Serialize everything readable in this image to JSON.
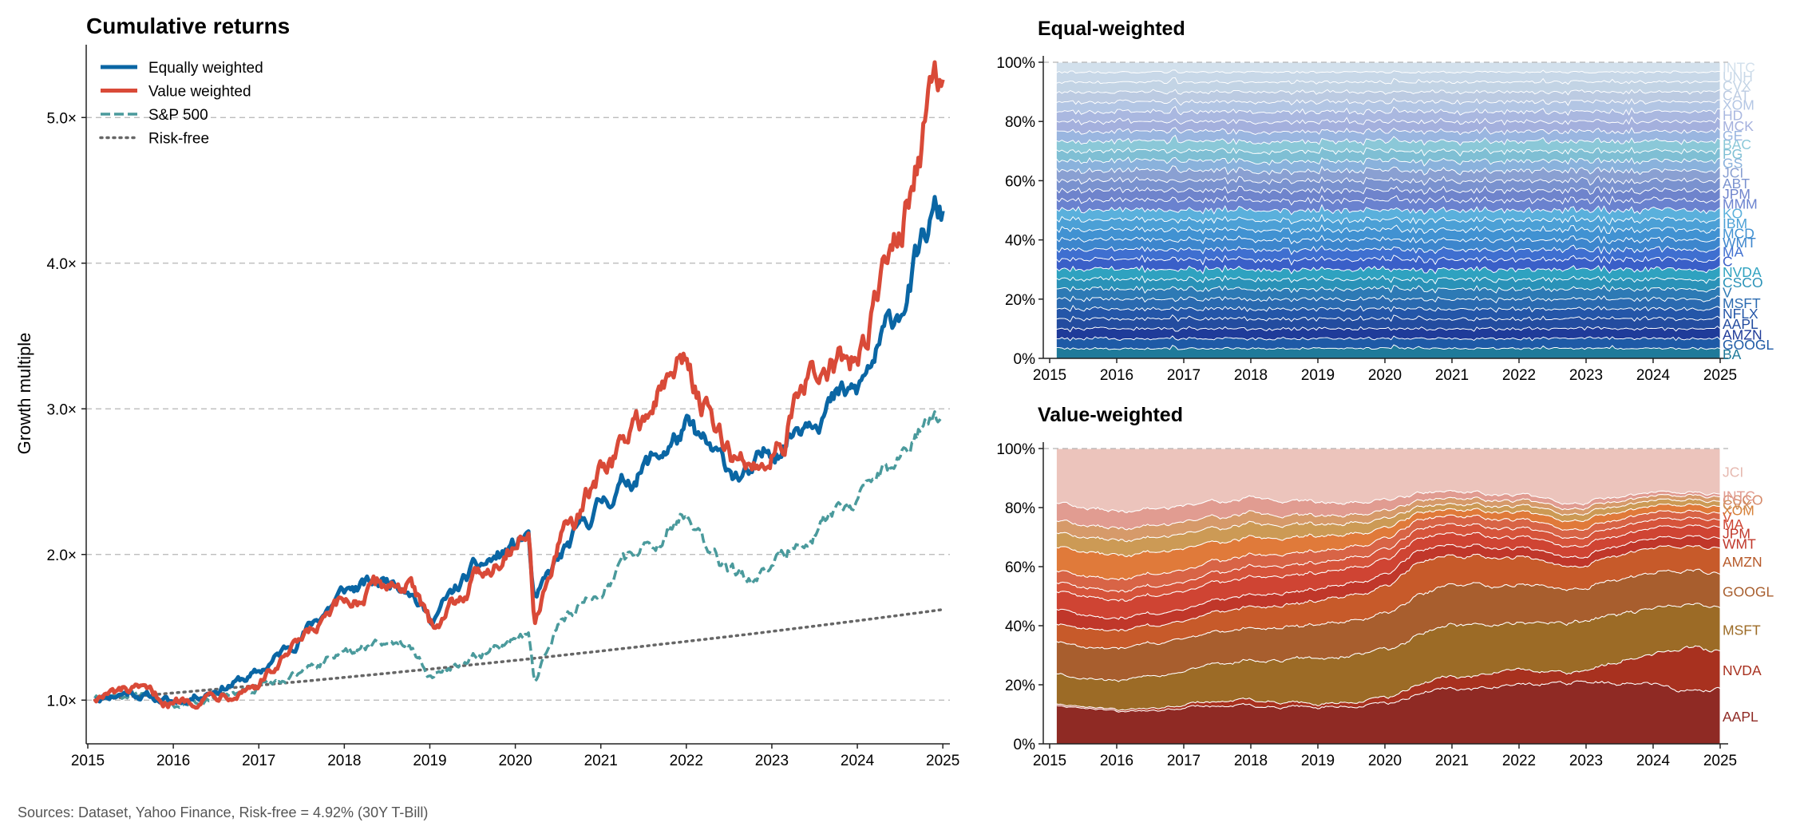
{
  "sources": "Sources: Dataset, Yahoo Finance, Risk-free = 4.92% (30Y T-Bill)",
  "chart_data": [
    {
      "type": "line",
      "title": "Cumulative returns",
      "xlabel": "",
      "ylabel": "Growth multiple",
      "xlim": [
        2015,
        2025
      ],
      "ylim": [
        0.7,
        5.5
      ],
      "xticks": [
        "2015",
        "2016",
        "2017",
        "2018",
        "2019",
        "2020",
        "2021",
        "2022",
        "2023",
        "2024",
        "2025"
      ],
      "yticks": [
        "1.0×",
        "2.0×",
        "3.0×",
        "4.0×",
        "5.0×"
      ],
      "ytick_values": [
        1,
        2,
        3,
        4,
        5
      ],
      "grid": "horizontal dashed",
      "legend_position": "top-left",
      "x": [
        2015.08,
        2015.5,
        2016.0,
        2016.5,
        2017.0,
        2017.5,
        2018.0,
        2018.5,
        2018.75,
        2019.0,
        2019.5,
        2020.0,
        2020.15,
        2020.22,
        2020.5,
        2021.0,
        2021.5,
        2022.0,
        2022.4,
        2022.75,
        2023.0,
        2023.5,
        2024.0,
        2024.5,
        2024.9,
        2025.0
      ],
      "series": [
        {
          "name": "Equally weighted",
          "color": "#0a66a4",
          "style": "solid",
          "values": [
            1.02,
            1.06,
            0.98,
            1.08,
            1.18,
            1.45,
            1.75,
            1.82,
            1.82,
            1.55,
            1.88,
            2.05,
            2.15,
            1.65,
            1.95,
            2.35,
            2.6,
            2.85,
            2.62,
            2.52,
            2.72,
            3.02,
            3.1,
            3.7,
            4.32,
            4.3
          ]
        },
        {
          "name": "Value weighted",
          "color": "#d94a38",
          "style": "solid",
          "values": [
            1.02,
            1.06,
            0.98,
            1.05,
            1.12,
            1.38,
            1.65,
            1.8,
            1.8,
            1.5,
            1.83,
            2.1,
            2.2,
            1.58,
            2.02,
            2.55,
            2.95,
            3.35,
            2.75,
            2.58,
            2.72,
            3.22,
            3.3,
            4.25,
            5.2,
            5.2
          ]
        },
        {
          "name": "S&P 500",
          "color": "#4a9a9c",
          "style": "dashed",
          "values": [
            1.02,
            1.04,
            0.95,
            1.02,
            1.08,
            1.2,
            1.35,
            1.38,
            1.42,
            1.18,
            1.3,
            1.42,
            1.48,
            1.12,
            1.52,
            1.78,
            2.05,
            2.3,
            1.92,
            1.82,
            1.95,
            2.2,
            2.35,
            2.65,
            3.0,
            2.95
          ]
        },
        {
          "name": "Risk-free",
          "color": "#666666",
          "style": "dotted",
          "values": [
            1.0,
            1.024,
            1.049,
            1.075,
            1.102,
            1.128,
            1.156,
            1.184,
            1.199,
            1.213,
            1.243,
            1.273,
            1.282,
            1.287,
            1.305,
            1.337,
            1.37,
            1.403,
            1.43,
            1.454,
            1.472,
            1.508,
            1.545,
            1.583,
            1.614,
            1.622
          ]
        }
      ]
    },
    {
      "type": "area",
      "stacked": "percent",
      "title": "Equal-weighted",
      "xlim": [
        2015,
        2025
      ],
      "ylim": [
        0,
        100
      ],
      "xticks": [
        "2015",
        "2016",
        "2017",
        "2018",
        "2019",
        "2020",
        "2021",
        "2022",
        "2023",
        "2024",
        "2025"
      ],
      "yticks": [
        "0%",
        "20%",
        "40%",
        "60%",
        "80%",
        "100%"
      ],
      "series_labels_bottom_to_top": [
        "BA",
        "GOOGL",
        "AMZN",
        "AAPL",
        "NFLX",
        "MSFT",
        "V",
        "CSCO",
        "NVDA",
        "C",
        "MA",
        "WMT",
        "MCD",
        "IBM",
        "KO",
        "MMM",
        "JPM",
        "ABT",
        "JCI",
        "GS",
        "PG",
        "BAC",
        "GE",
        "MCK",
        "HD",
        "XOM",
        "CAT",
        "CVX",
        "UNH",
        "INTC"
      ],
      "series_colors": [
        "#1f7a9a",
        "#1e5aa6",
        "#1f3b99",
        "#234c9f",
        "#2456a8",
        "#2a6ab0",
        "#2d7ab5",
        "#2a92b8",
        "#2fa2c0",
        "#3a5fc8",
        "#3f6fd0",
        "#3d86cd",
        "#4192d2",
        "#4ca0d6",
        "#5ab0dc",
        "#6a82cf",
        "#6f84cc",
        "#7a92cf",
        "#8aa0d2",
        "#8ab2dc",
        "#7fbfd4",
        "#8bc8d8",
        "#9ab6e0",
        "#a4b0dd",
        "#aab8e0",
        "#b3c6e4",
        "#bccbe2",
        "#c3d4e5",
        "#c8d8e8",
        "#d2e0ec"
      ],
      "values": "equal 1/30 share (~3.33%) per ticker across 2015–2025"
    },
    {
      "type": "area",
      "stacked": "percent",
      "title": "Value-weighted",
      "xlim": [
        2015,
        2025
      ],
      "ylim": [
        0,
        100
      ],
      "xticks": [
        "2015",
        "2016",
        "2017",
        "2018",
        "2019",
        "2020",
        "2021",
        "2022",
        "2023",
        "2024",
        "2025"
      ],
      "yticks": [
        "0%",
        "20%",
        "40%",
        "60%",
        "80%",
        "100%"
      ],
      "x": [
        2015.1,
        2016,
        2017,
        2018,
        2019,
        2020.1,
        2020.4,
        2021,
        2022,
        2022.9,
        2023.5,
        2024,
        2024.5,
        2025
      ],
      "series": [
        {
          "name": "AAPL",
          "color": "#8f2a24",
          "values": [
            13,
            11,
            12,
            13,
            12,
            14,
            16,
            18,
            20,
            19,
            20,
            20,
            17,
            17
          ]
        },
        {
          "name": "NVDA",
          "color": "#a8311f",
          "values": [
            0.5,
            0.5,
            1,
            2,
            1,
            2,
            3,
            4,
            5,
            3,
            7,
            10,
            14,
            13
          ]
        },
        {
          "name": "MSFT",
          "color": "#9c6b26",
          "values": [
            10,
            10,
            11,
            13,
            15,
            17,
            17,
            17,
            16,
            16,
            16,
            15,
            14,
            14
          ]
        },
        {
          "name": "GOOGL",
          "color": "#a85e2e",
          "values": [
            11,
            11,
            11,
            11,
            11,
            12,
            12,
            13,
            13,
            11,
            11,
            11,
            11,
            11
          ]
        },
        {
          "name": "AMZN",
          "color": "#c75a2a",
          "values": [
            6,
            6,
            6,
            7,
            8,
            9,
            11,
            10,
            9,
            7,
            8,
            8,
            8,
            8
          ]
        },
        {
          "name": "WMT",
          "color": "#c0372a",
          "values": [
            5,
            4,
            4,
            4,
            4,
            4,
            4,
            3.5,
            3,
            3,
            3,
            3,
            3,
            3
          ]
        },
        {
          "name": "JPM",
          "color": "#cf4433",
          "values": [
            6,
            6,
            6,
            6,
            5.5,
            5,
            4,
            4,
            3.5,
            3.5,
            3.5,
            3.5,
            3.5,
            3.5
          ]
        },
        {
          "name": "MA",
          "color": "#d6543b",
          "values": [
            3,
            3,
            3,
            3.5,
            3.5,
            3.5,
            3,
            3,
            3,
            2.8,
            2.8,
            2.6,
            2.4,
            2.3
          ]
        },
        {
          "name": "V",
          "color": "#d86446",
          "values": [
            4,
            4,
            4,
            4,
            4,
            3.5,
            3,
            3,
            2.8,
            2.7,
            2.6,
            2.4,
            2.2,
            2.2
          ]
        },
        {
          "name": "XOM",
          "color": "#e07a3a",
          "values": [
            8,
            8,
            7,
            6,
            5,
            3.5,
            2.5,
            2,
            2.5,
            2.8,
            2.5,
            2.2,
            2,
            2
          ]
        },
        {
          "name": "CVX",
          "color": "#cc9a55",
          "values": [
            5,
            5,
            5,
            4.5,
            4,
            3,
            2,
            1.8,
            2,
            2.2,
            2,
            1.8,
            1.6,
            1.6
          ]
        },
        {
          "name": "CSCO",
          "color": "#d69a6a",
          "values": [
            4,
            4,
            4,
            3.5,
            3,
            2.5,
            2,
            2,
            1.8,
            1.8,
            1.6,
            1.5,
            1.4,
            1.4
          ]
        },
        {
          "name": "INTC",
          "color": "#e19c91",
          "values": [
            6,
            6,
            5.5,
            5,
            4.5,
            3.5,
            2.5,
            2.3,
            1.8,
            1.6,
            1.4,
            1.2,
            0.9,
            0.9
          ]
        },
        {
          "name": "JCI",
          "color": "#ecc4bc",
          "values": [
            18.5,
            21.5,
            19.5,
            16.5,
            18.5,
            16.5,
            15,
            14.6,
            15.6,
            17.9,
            16.6,
            14.8,
            13.6,
            14.7
          ]
        }
      ],
      "visible_labels": [
        "AAPL",
        "NVDA",
        "MSFT",
        "GOOGL",
        "AMZN",
        "WMT",
        "JPM",
        "MA",
        "V",
        "XOM",
        "CVX",
        "CSCO",
        "INTC",
        "JCI"
      ]
    }
  ]
}
